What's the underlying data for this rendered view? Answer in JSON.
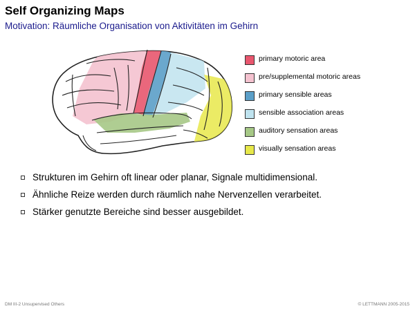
{
  "header": {
    "title": "Self Organizing Maps",
    "subtitle": "Motivation: Räumliche Organisation von Aktivitäten im Gehirn"
  },
  "legend": [
    {
      "label": "primary motoric area",
      "color": "#e8566e"
    },
    {
      "label": "pre/supplemental motoric areas",
      "color": "#f4c2cf"
    },
    {
      "label": "primary sensible areas",
      "color": "#5b9fc8"
    },
    {
      "label": "sensible association areas",
      "color": "#bfe3ef"
    },
    {
      "label": "auditory sensation areas",
      "color": "#a6c886"
    },
    {
      "label": "visually sensation areas",
      "color": "#e7e84a"
    }
  ],
  "bullets": [
    "Strukturen im Gehirn oft linear oder planar, Signale multidimensional.",
    "Ähnliche Reize werden durch räumlich nahe Nervenzellen verarbeitet.",
    "Stärker genutzte Bereiche sind besser ausgebildet."
  ],
  "footer": {
    "left": "DM III-2 Unsupervised Others",
    "right": "© LETTMANN 2005-2015"
  }
}
